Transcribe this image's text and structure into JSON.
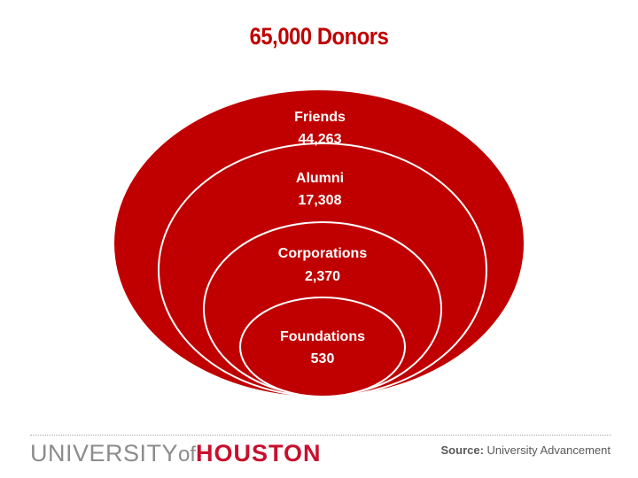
{
  "title": "65,000 Donors",
  "rings": [
    {
      "label": "Friends",
      "value": "44,263"
    },
    {
      "label": "Alumni",
      "value": "17,308"
    },
    {
      "label": "Corporations",
      "value": "2,370"
    },
    {
      "label": "Foundations",
      "value": "530"
    }
  ],
  "footer": {
    "logo_university": "UNIVERSITY",
    "logo_of": "of",
    "logo_houston": "HOUSTON",
    "source_label": "Source:",
    "source_text": "University Advancement"
  },
  "colors": {
    "brand_red": "#c00000",
    "ring_stroke": "#ffffff",
    "logo_gray": "#8c8c8c",
    "logo_red": "#c8102e"
  }
}
